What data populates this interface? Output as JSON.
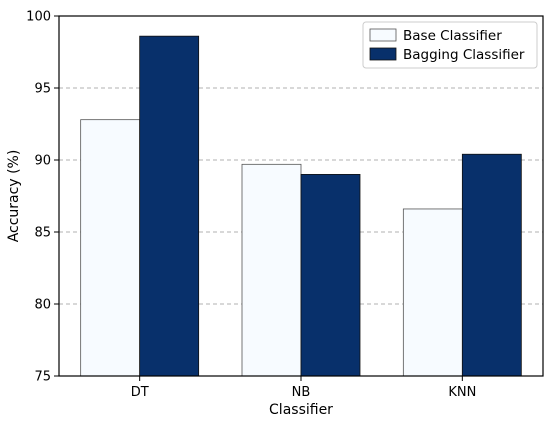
{
  "chart_data": {
    "type": "bar",
    "xlabel": "Classifier",
    "ylabel": "Accuracy (%)",
    "categories": [
      "DT",
      "NB",
      "KNN"
    ],
    "ylim": [
      75,
      100
    ],
    "yticks": [
      75,
      80,
      85,
      90,
      95,
      100
    ],
    "ytick_labels": [
      "75",
      "80",
      "85",
      "90",
      "95",
      "100"
    ],
    "grid": "y-dashed",
    "legend_position": "top-right",
    "series": [
      {
        "name": "Base Classifier",
        "values": [
          92.8,
          89.7,
          86.6
        ],
        "color": "#f7fbff",
        "edge": "#555555"
      },
      {
        "name": "Bagging Classifier",
        "values": [
          98.6,
          89.0,
          90.4
        ],
        "color": "#08306b",
        "edge": "#111111"
      }
    ]
  }
}
